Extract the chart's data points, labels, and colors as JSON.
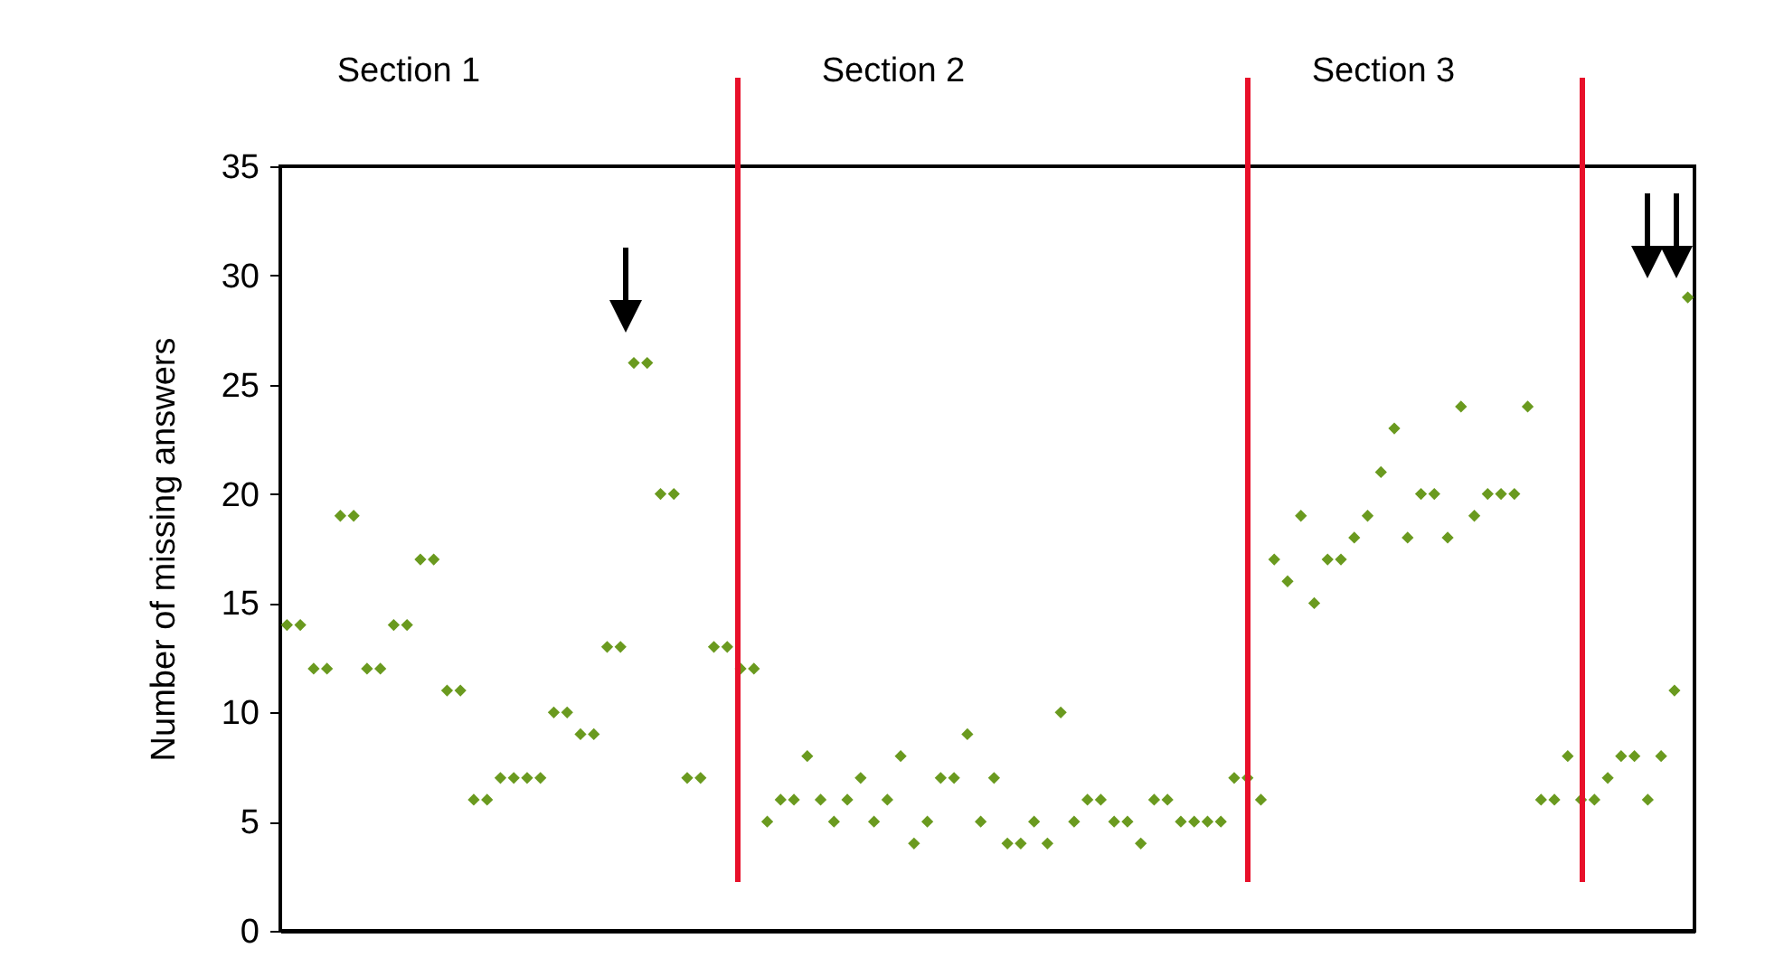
{
  "chart_data": {
    "type": "scatter",
    "ylabel": "Number of missing answers",
    "categories": [
      null,
      null,
      null,
      null,
      null,
      null,
      null,
      null,
      null,
      null,
      null,
      null,
      null,
      null,
      null,
      null,
      null,
      null,
      null,
      null,
      null,
      null,
      null,
      null,
      null,
      null,
      null,
      null,
      null,
      null,
      null,
      null,
      null,
      null,
      null,
      null,
      null,
      null,
      null,
      null,
      null,
      null,
      null,
      null,
      null,
      null,
      null,
      null,
      null,
      null,
      null,
      null,
      null,
      null,
      null,
      null,
      null,
      null,
      null,
      null,
      null,
      null,
      null,
      null,
      null,
      null,
      null,
      null,
      null,
      null,
      null,
      null,
      null,
      null,
      null,
      null,
      null,
      null,
      null,
      null,
      null,
      null,
      null,
      null,
      null,
      null,
      null,
      null,
      null,
      null,
      null,
      null,
      null,
      null,
      null,
      null,
      null,
      null,
      null,
      null,
      null,
      null,
      null,
      null,
      null,
      null
    ],
    "series": [
      {
        "color": "#6a9a1f",
        "values": [
          14,
          14,
          12,
          12,
          19,
          19,
          12,
          12,
          14,
          14,
          17,
          17,
          11,
          11,
          6,
          6,
          7,
          7,
          7,
          7,
          10,
          10,
          9,
          9,
          13,
          13,
          26,
          26,
          20,
          20,
          7,
          7,
          13,
          13,
          12,
          12,
          5,
          6,
          6,
          8,
          6,
          5,
          6,
          7,
          5,
          6,
          8,
          4,
          5,
          7,
          7,
          9,
          5,
          7,
          4,
          4,
          5,
          4,
          10,
          5,
          6,
          6,
          5,
          5,
          4,
          6,
          6,
          5,
          5,
          5,
          5,
          7,
          7,
          6,
          17,
          16,
          19,
          15,
          17,
          17,
          18,
          19,
          21,
          23,
          18,
          20,
          20,
          18,
          24,
          19,
          20,
          20,
          20,
          24,
          6,
          6,
          8,
          6,
          6,
          7,
          8,
          8,
          6,
          8,
          11,
          29
        ]
      }
    ],
    "ylim": [
      0,
      35
    ],
    "yticks": [
      0,
      5,
      10,
      15,
      20,
      25,
      30,
      35
    ],
    "grid": false,
    "legend": false,
    "marker": "diamond",
    "tick_labels": "y",
    "annotations": [
      "Section 1",
      "Section 2",
      "Section 3"
    ]
  }
}
